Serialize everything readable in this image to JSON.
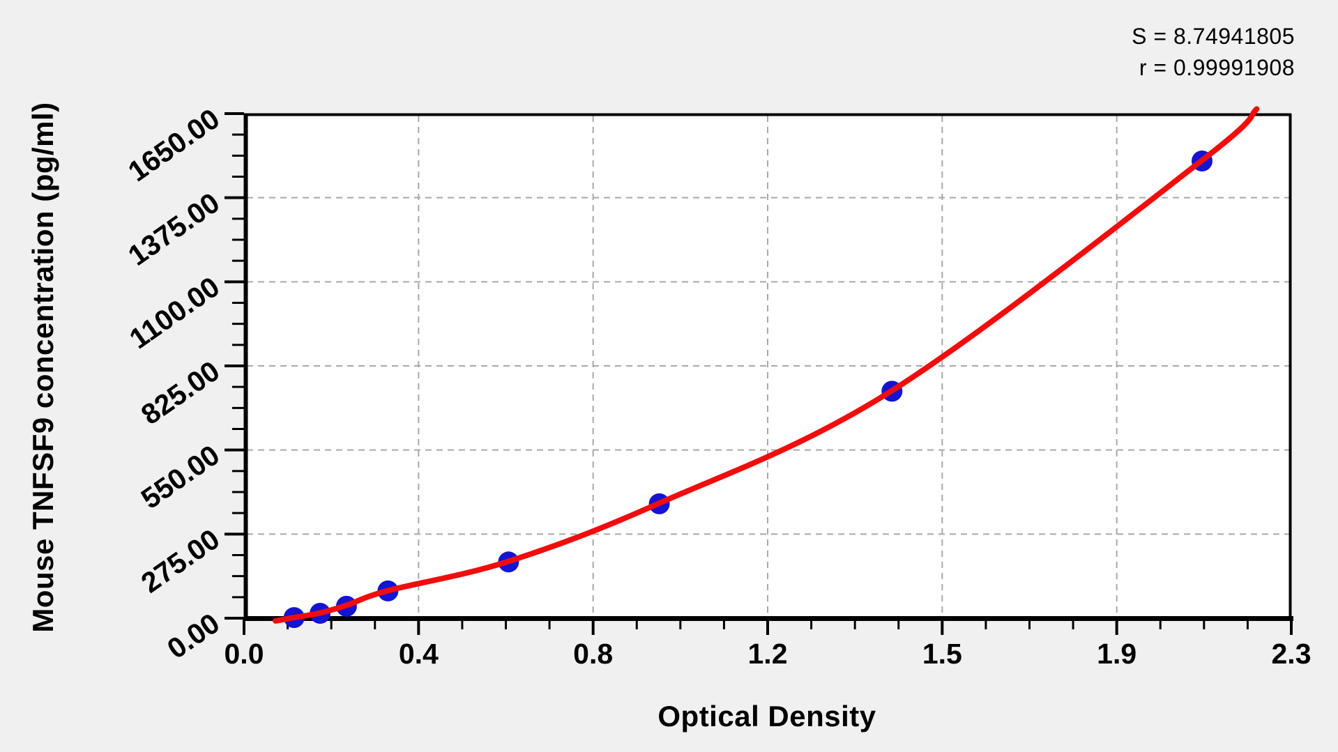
{
  "annotation": {
    "s_line": "S = 8.74941805",
    "r_line": "r = 0.99991908"
  },
  "chart_data": {
    "type": "scatter",
    "title": "",
    "xlabel": "Optical Density",
    "ylabel": "Mouse TNFSF9 concentration (pg/ml)",
    "xlim": [
      0,
      2.3
    ],
    "ylim": [
      0,
      1650
    ],
    "x_tick_labels": [
      "0.0",
      "0.4",
      "0.8",
      "1.2",
      "1.5",
      "1.9",
      "2.3"
    ],
    "y_tick_labels": [
      "0.00",
      "275.00",
      "550.00",
      "825.00",
      "1100.00",
      "1375.00",
      "1650.00"
    ],
    "x_major_count": 6,
    "y_major_count": 6,
    "minor_subdivisions": 4,
    "grid": {
      "show": true,
      "style": "dashed",
      "color": "#a8a8a8"
    },
    "legend_position": "none",
    "stats": {
      "S": "8.74941805",
      "r": "0.99991908"
    },
    "colors": {
      "point": "#1414d2",
      "curve": "#f20c0c",
      "plot_bg": "#ffffff",
      "page_bg": "#f0f0f0",
      "axis": "#000000"
    },
    "series": [
      {
        "name": "standard-points",
        "type": "scatter",
        "marker_radius": 15,
        "points": [
          {
            "x": 0.11,
            "y": 2
          },
          {
            "x": 0.167,
            "y": 16
          },
          {
            "x": 0.225,
            "y": 39
          },
          {
            "x": 0.316,
            "y": 89
          },
          {
            "x": 0.581,
            "y": 184
          },
          {
            "x": 0.912,
            "y": 374
          },
          {
            "x": 1.423,
            "y": 742
          },
          {
            "x": 2.104,
            "y": 1495
          }
        ]
      },
      {
        "name": "fitted-curve",
        "type": "line",
        "stroke_width": 8,
        "points": [
          {
            "x": 0.069,
            "y": -9
          },
          {
            "x": 0.11,
            "y": 2
          },
          {
            "x": 0.167,
            "y": 17
          },
          {
            "x": 0.225,
            "y": 42
          },
          {
            "x": 0.316,
            "y": 90
          },
          {
            "x": 0.581,
            "y": 186
          },
          {
            "x": 0.912,
            "y": 376
          },
          {
            "x": 1.423,
            "y": 744
          },
          {
            "x": 2.104,
            "y": 1497
          },
          {
            "x": 2.224,
            "y": 1665
          }
        ]
      }
    ]
  }
}
